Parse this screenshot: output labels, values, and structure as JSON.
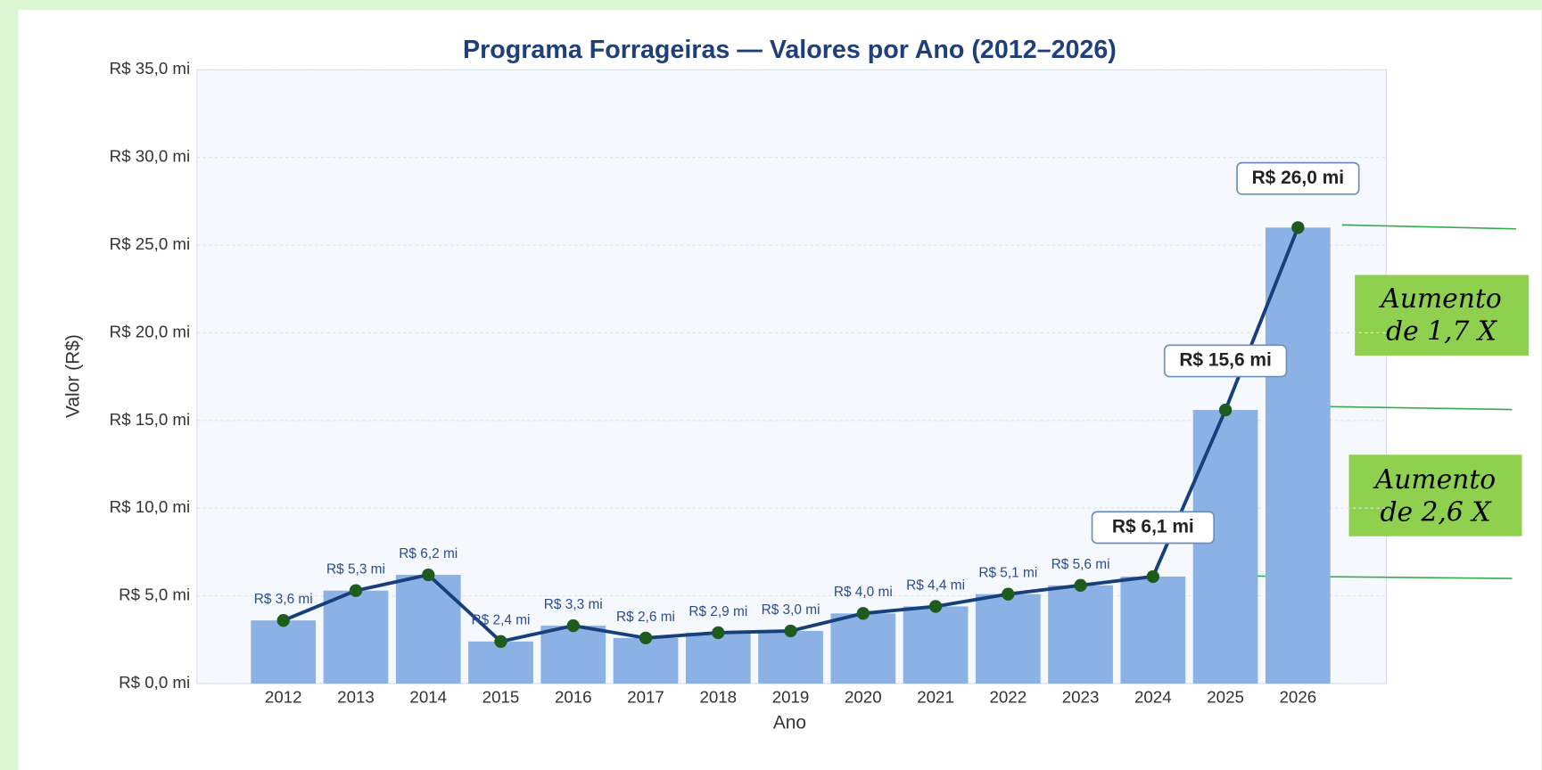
{
  "chart_data": {
    "type": "bar",
    "title": "Programa Forrageiras — Valores por Ano (2012–2026)",
    "x_label": "Ano",
    "y_label": "Valor (R$)",
    "categories": [
      "2012",
      "2013",
      "2014",
      "2015",
      "2016",
      "2017",
      "2018",
      "2019",
      "2020",
      "2021",
      "2022",
      "2023",
      "2024",
      "2025",
      "2026"
    ],
    "values": [
      3.6,
      5.3,
      6.2,
      2.4,
      3.3,
      2.6,
      2.9,
      3.0,
      4.0,
      4.4,
      5.1,
      5.6,
      6.1,
      15.6,
      26.0
    ],
    "value_labels": [
      "R$ 3,6 mi",
      "R$ 5,3 mi",
      "R$ 6,2 mi",
      "R$ 2,4 mi",
      "R$ 3,3 mi",
      "R$ 2,6 mi",
      "R$ 2,9 mi",
      "R$ 3,0 mi",
      "R$ 4,0 mi",
      "R$ 4,4 mi",
      "R$ 5,1 mi",
      "R$ 5,6 mi",
      "R$ 6,1 mi",
      "R$ 15,6 mi",
      "R$ 26,0 mi"
    ],
    "highlighted": [
      12,
      13,
      14
    ],
    "color": "#8cb1e4",
    "line_color": "#173f7a",
    "marker_color": "#1e5c1e",
    "ylim": [
      0,
      35
    ],
    "yticks": [
      {
        "value": 0,
        "label": "R$ 0,0 mi"
      },
      {
        "value": 5,
        "label": "R$ 5,0 mi"
      },
      {
        "value": 10,
        "label": "R$ 10,0 mi"
      },
      {
        "value": 15,
        "label": "R$ 15,0 mi"
      },
      {
        "value": 20,
        "label": "R$ 20,0 mi"
      },
      {
        "value": 25,
        "label": "R$ 25,0 mi"
      },
      {
        "value": 30,
        "label": "R$ 30,0 mi"
      },
      {
        "value": 35,
        "label": "R$ 35,0 mi"
      }
    ],
    "grid": true,
    "annotations": [
      {
        "lines": [
          "Aumento",
          "de 1,7 X"
        ]
      },
      {
        "lines": [
          "Aumento",
          "de 2,6 X"
        ]
      }
    ]
  }
}
